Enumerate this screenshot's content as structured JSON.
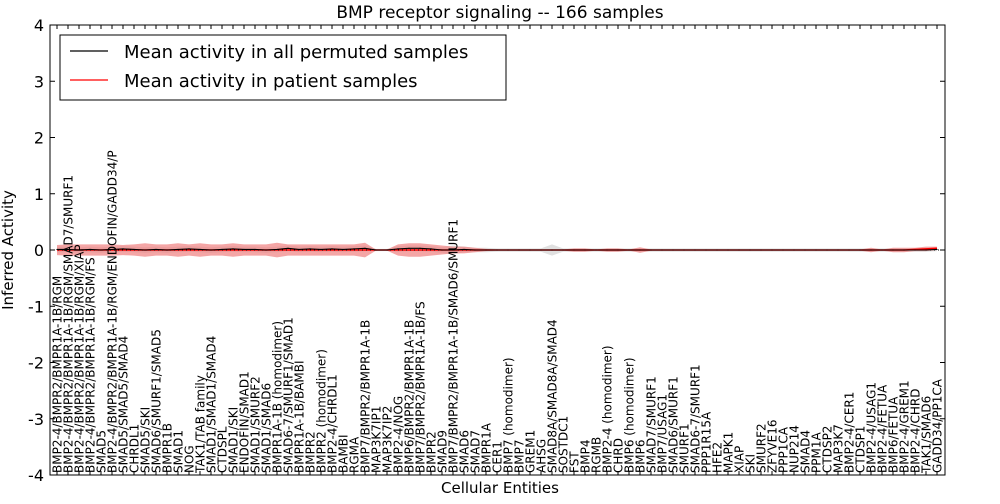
{
  "chart_data": {
    "type": "line",
    "title": "BMP receptor signaling -- 166 samples",
    "xlabel": "Cellular Entities",
    "ylabel": "Inferred Activity",
    "ylim": [
      -4,
      4
    ],
    "yticks": [
      -4,
      -3,
      -2,
      -1,
      0,
      1,
      2,
      3,
      4
    ],
    "legend_position": "top-left",
    "categories": [
      "BMP2-4/BMPR2/BMPR1A-1B/RGM",
      "BMP2-4/BMPR2/BMPR1A-1B/RGM/SMAD7/SMURF1",
      "BMP2-4/BMPR2/BMPR1A-1B/RGM/XIAP",
      "BMP2-4/BMPR2/BMPR1A-1B/RGM/FS",
      "SMAD5",
      "BMP2-4/BMPR2/BMPR1A-1B/RGM/ENDOFIN/GADD34/P",
      "SMAD5/SMAD5/SMAD4",
      "CHRDL1",
      "SMAD5/SKI",
      "SMAD6/SMURF1/SMAD5",
      "BMPR1B",
      "SMAD1",
      "NOG",
      "TAK1/TAB family",
      "SMAD1/SMAD1/SMAD4",
      "CTDSPL",
      "SMAD1/SKI",
      "ENDOFIN/SMAD1",
      "SMAD1/SMURF2",
      "SMAD1/SMAD6",
      "BMPR1A-1B (homodimer)",
      "SMAD6-7/SMURF1/SMAD1",
      "BMPR1A-1B/BAMBI",
      "BMPR2",
      "BMPR2 (homodimer)",
      "BMP2-4/CHRDL1",
      "BAMBI",
      "RGMA",
      "BMP7/BMPR2/BMPR1A-1B",
      "MAP3K7IP1",
      "MAP3K7IP2",
      "BMP2-4/NOG",
      "BMP6/BMPR2/BMPR1A-1B",
      "BMP7/BMPR2/BMPR1A-1B/FS",
      "BMPR2",
      "SMAD9",
      "BMP7/BMPR2/BMPR1A-1B/SMAD6/SMURF1",
      "SMAD6",
      "SMAD7",
      "BMPR1A",
      "CER1",
      "BMP7 (homodimer)",
      "BMP7",
      "GREM1",
      "AHSG",
      "SMAD8A/SMAD8A/SMAD4",
      "SOSTDC1",
      "FST",
      "BMP4",
      "RGMB",
      "BMP2-4 (homodimer)",
      "CHRD",
      "BMP6 (homodimer)",
      "BMP6",
      "SMAD7/SMURF1",
      "BMP7/USAG1",
      "SMAD6/SMURF1",
      "SMURF1",
      "SMAD6-7/SMURF1",
      "PPP1R15A",
      "HFE2",
      "MAPK1",
      "XIAP",
      "SKI",
      "SMURF2",
      "ZFYVE16",
      "PPP1CA",
      "NUP214",
      "SMAD4",
      "PPM1A",
      "CTDSP2",
      "MAP3K7",
      "BMP2-4/CER1",
      "CTDSP1",
      "BMP2-4/USAG1",
      "BMP2-4/FETUA",
      "BMP6/FETUA",
      "BMP2-4/GREM1",
      "BMP2-4/CHRD",
      "TAK1/SMAD6",
      "GADD34/PP1CA"
    ],
    "series": [
      {
        "name": "Mean activity in all permuted samples",
        "color": "#000000",
        "band_color": "#cccccc",
        "values": [
          0.01,
          0.01,
          0.0,
          0.01,
          0.0,
          0.01,
          0.02,
          0.01,
          0.0,
          0.01,
          0.0,
          0.01,
          0.02,
          0.01,
          0.0,
          0.01,
          0.02,
          0.01,
          0.01,
          0.0,
          0.01,
          0.03,
          0.01,
          0.02,
          0.01,
          0.02,
          0.01,
          0.02,
          0.03,
          0.0,
          0.0,
          0.02,
          0.03,
          0.03,
          0.02,
          0.0,
          0.0,
          0.01,
          0.0,
          0.0,
          0.0,
          0.0,
          0.0,
          0.0,
          0.0,
          0.0,
          0.0,
          0.0,
          0.0,
          0.0,
          0.0,
          0.0,
          0.0,
          0.0,
          0.0,
          0.0,
          0.0,
          0.0,
          0.0,
          0.0,
          0.0,
          0.0,
          0.0,
          0.0,
          0.0,
          0.0,
          0.0,
          0.0,
          0.0,
          0.0,
          0.0,
          0.0,
          0.0,
          0.0,
          0.0,
          0.0,
          0.0,
          0.0,
          0.0,
          0.0,
          0.01
        ],
        "band": [
          0.05,
          0.05,
          0.05,
          0.05,
          0.05,
          0.05,
          0.05,
          0.05,
          0.05,
          0.05,
          0.05,
          0.05,
          0.05,
          0.05,
          0.05,
          0.05,
          0.05,
          0.05,
          0.05,
          0.05,
          0.05,
          0.05,
          0.05,
          0.05,
          0.05,
          0.05,
          0.05,
          0.05,
          0.05,
          0.02,
          0.02,
          0.05,
          0.05,
          0.05,
          0.05,
          0.05,
          0.08,
          0.05,
          0.04,
          0.04,
          0.03,
          0.03,
          0.03,
          0.03,
          0.03,
          0.1,
          0.03,
          0.03,
          0.03,
          0.03,
          0.03,
          0.03,
          0.03,
          0.03,
          0.03,
          0.03,
          0.03,
          0.03,
          0.03,
          0.03,
          0.03,
          0.03,
          0.03,
          0.03,
          0.03,
          0.03,
          0.03,
          0.03,
          0.03,
          0.03,
          0.03,
          0.03,
          0.03,
          0.03,
          0.03,
          0.03,
          0.03,
          0.03,
          0.03,
          0.03,
          0.03
        ]
      },
      {
        "name": "Mean activity in patient samples",
        "color": "#ff0000",
        "band_color": "#f08080",
        "values": [
          0.0,
          0.0,
          0.0,
          0.0,
          0.0,
          0.0,
          0.0,
          0.0,
          0.0,
          0.0,
          0.0,
          0.0,
          0.0,
          0.0,
          0.0,
          0.0,
          0.0,
          0.0,
          0.0,
          0.0,
          0.0,
          0.0,
          0.0,
          0.0,
          0.0,
          0.0,
          0.0,
          0.0,
          0.0,
          0.0,
          0.0,
          0.0,
          0.0,
          0.0,
          0.0,
          0.0,
          0.0,
          0.0,
          0.0,
          0.0,
          0.0,
          0.0,
          0.0,
          0.0,
          0.0,
          0.0,
          0.0,
          0.0,
          0.0,
          0.0,
          0.0,
          0.0,
          0.0,
          0.0,
          0.0,
          0.0,
          0.0,
          0.0,
          0.0,
          0.0,
          0.0,
          0.0,
          0.0,
          0.0,
          0.0,
          0.0,
          0.0,
          0.0,
          0.0,
          0.0,
          0.0,
          0.0,
          0.0,
          0.0,
          0.0,
          0.0,
          0.0,
          0.0,
          0.01,
          0.02,
          0.03
        ],
        "band": [
          0.09,
          0.1,
          0.1,
          0.1,
          0.1,
          0.1,
          0.09,
          0.1,
          0.12,
          0.1,
          0.1,
          0.12,
          0.1,
          0.12,
          0.1,
          0.1,
          0.12,
          0.1,
          0.1,
          0.1,
          0.13,
          0.1,
          0.1,
          0.1,
          0.1,
          0.1,
          0.1,
          0.1,
          0.13,
          0.01,
          0.01,
          0.1,
          0.12,
          0.12,
          0.1,
          0.08,
          0.06,
          0.06,
          0.04,
          0.02,
          0.01,
          0.01,
          0.01,
          0.01,
          0.01,
          0.01,
          0.01,
          0.03,
          0.03,
          0.01,
          0.03,
          0.03,
          0.01,
          0.05,
          0.01,
          0.01,
          0.01,
          0.01,
          0.01,
          0.01,
          0.01,
          0.01,
          0.01,
          0.01,
          0.01,
          0.01,
          0.01,
          0.01,
          0.01,
          0.01,
          0.01,
          0.01,
          0.01,
          0.01,
          0.04,
          0.01,
          0.04,
          0.04,
          0.03,
          0.04,
          0.03
        ]
      }
    ]
  }
}
